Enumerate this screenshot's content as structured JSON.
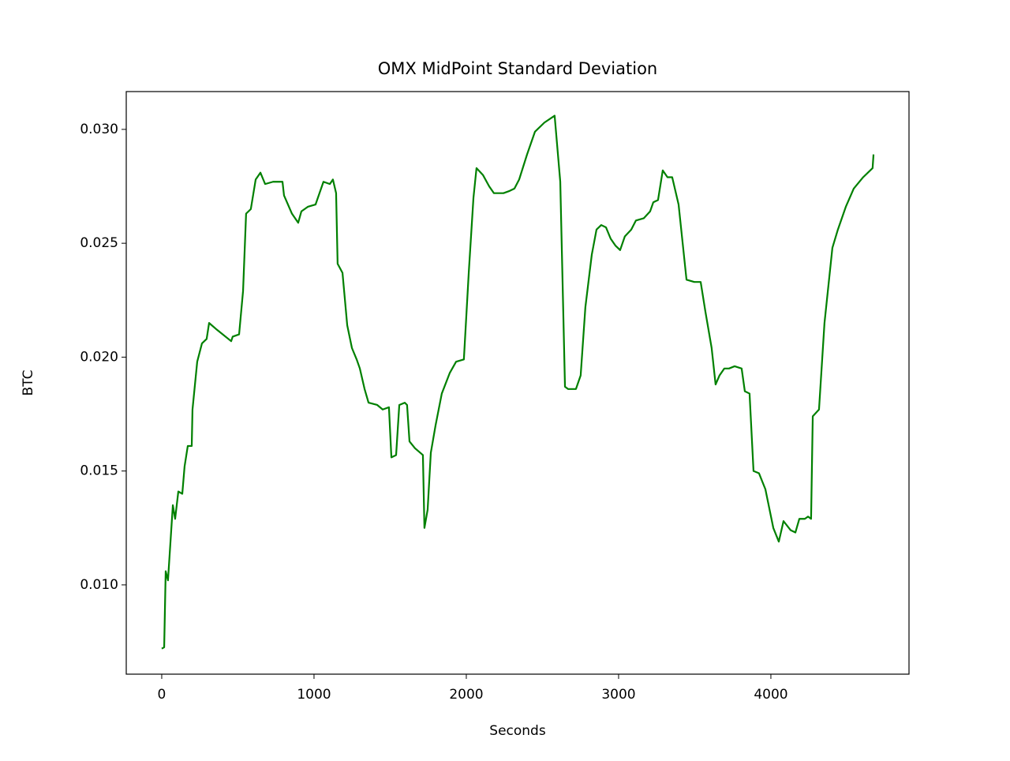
{
  "chart_data": {
    "type": "line",
    "title": "OMX MidPoint Standard Deviation",
    "x_label": "Seconds",
    "y_label": "BTC",
    "x": [
      0,
      16,
      26,
      41,
      73,
      88,
      109,
      135,
      150,
      171,
      197,
      202,
      233,
      264,
      295,
      311,
      363,
      456,
      466,
      508,
      534,
      554,
      585,
      617,
      648,
      679,
      731,
      762,
      793,
      803,
      855,
      896,
      917,
      959,
      1010,
      1062,
      1104,
      1124,
      1145,
      1155,
      1187,
      1218,
      1249,
      1280,
      1301,
      1332,
      1358,
      1415,
      1451,
      1492,
      1508,
      1539,
      1560,
      1596,
      1611,
      1627,
      1663,
      1715,
      1725,
      1746,
      1767,
      1798,
      1839,
      1891,
      1933,
      1984,
      2016,
      2047,
      2067,
      2109,
      2150,
      2181,
      2244,
      2285,
      2316,
      2347,
      2399,
      2451,
      2513,
      2580,
      2617,
      2648,
      2668,
      2720,
      2751,
      2782,
      2824,
      2855,
      2886,
      2917,
      2948,
      2979,
      3010,
      3041,
      3083,
      3114,
      3166,
      3207,
      3228,
      3259,
      3290,
      3321,
      3352,
      3394,
      3446,
      3497,
      3539,
      3570,
      3611,
      3637,
      3663,
      3694,
      3725,
      3762,
      3808,
      3829,
      3860,
      3886,
      3922,
      3964,
      4016,
      4052,
      4083,
      4130,
      4161,
      4187,
      4223,
      4244,
      4264,
      4275,
      4316,
      4352,
      4404,
      4440,
      4492,
      4544,
      4606,
      4668,
      4674
    ],
    "series": [
      {
        "name": "OMX MidPoint Standard Deviation",
        "color": "#008000",
        "values": [
          0.0072,
          0.00726,
          0.0106,
          0.0102,
          0.0135,
          0.0129,
          0.0141,
          0.014,
          0.0152,
          0.0161,
          0.0161,
          0.0177,
          0.0198,
          0.0206,
          0.0208,
          0.0215,
          0.0212,
          0.0207,
          0.0209,
          0.021,
          0.0229,
          0.0263,
          0.0265,
          0.0278,
          0.0281,
          0.0276,
          0.0277,
          0.0277,
          0.0277,
          0.0271,
          0.0263,
          0.0259,
          0.0264,
          0.0266,
          0.0267,
          0.0277,
          0.0276,
          0.0278,
          0.0272,
          0.0241,
          0.0237,
          0.0214,
          0.0204,
          0.0199,
          0.0195,
          0.0186,
          0.018,
          0.0179,
          0.0177,
          0.0178,
          0.0156,
          0.0157,
          0.0179,
          0.018,
          0.0179,
          0.0163,
          0.016,
          0.0157,
          0.0125,
          0.0133,
          0.0158,
          0.017,
          0.0184,
          0.0193,
          0.0198,
          0.0199,
          0.0237,
          0.027,
          0.0283,
          0.028,
          0.0275,
          0.0272,
          0.0272,
          0.0273,
          0.0274,
          0.0278,
          0.0289,
          0.0299,
          0.0303,
          0.0306,
          0.0277,
          0.0187,
          0.0186,
          0.0186,
          0.0192,
          0.0222,
          0.0245,
          0.0256,
          0.0258,
          0.0257,
          0.0252,
          0.0249,
          0.0247,
          0.0253,
          0.0256,
          0.026,
          0.0261,
          0.0264,
          0.0268,
          0.0269,
          0.0282,
          0.0279,
          0.0279,
          0.0267,
          0.0234,
          0.0233,
          0.0233,
          0.022,
          0.0204,
          0.0188,
          0.0192,
          0.0195,
          0.0195,
          0.0196,
          0.0195,
          0.0185,
          0.0184,
          0.015,
          0.0149,
          0.0142,
          0.0125,
          0.0119,
          0.0128,
          0.0124,
          0.0123,
          0.0129,
          0.0129,
          0.013,
          0.0129,
          0.0174,
          0.0177,
          0.0215,
          0.0248,
          0.0256,
          0.0266,
          0.0274,
          0.0279,
          0.0283,
          0.0289
        ]
      }
    ],
    "xlim": [
      -233,
      4907
    ],
    "ylim": [
      0.00608,
      0.03166
    ],
    "xticks": [
      0,
      1000,
      2000,
      3000,
      4000
    ],
    "yticks": [
      {
        "value": 0.01,
        "label": "0.010"
      },
      {
        "value": 0.015,
        "label": "0.015"
      },
      {
        "value": 0.02,
        "label": "0.020"
      },
      {
        "value": 0.025,
        "label": "0.025"
      },
      {
        "value": 0.03,
        "label": "0.030"
      }
    ]
  }
}
